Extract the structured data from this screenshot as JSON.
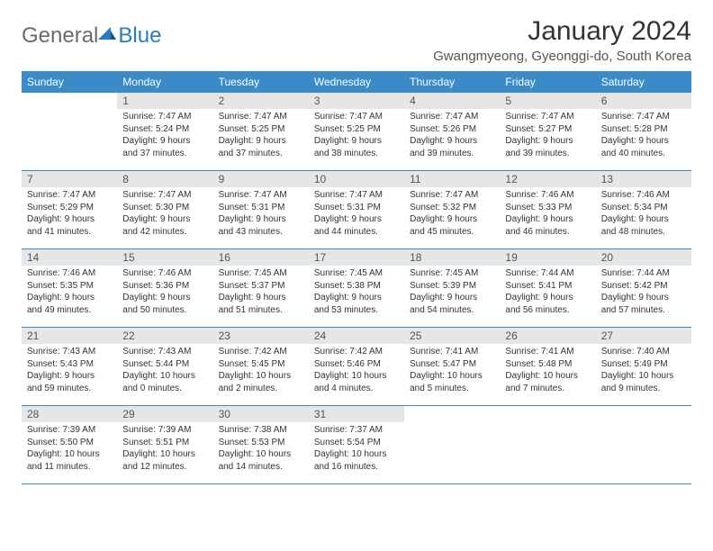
{
  "logo": {
    "general": "General",
    "blue": "Blue"
  },
  "title": "January 2024",
  "location": "Gwangmyeong, Gyeonggi-do, South Korea",
  "colors": {
    "header_bg": "#3b8bc9",
    "header_fg": "#ffffff",
    "daynum_bg": "#e6e6e6",
    "body_text": "#333333",
    "logo_gray": "#6b6b6b",
    "logo_blue": "#2b7bbf"
  },
  "day_headers": [
    "Sunday",
    "Monday",
    "Tuesday",
    "Wednesday",
    "Thursday",
    "Friday",
    "Saturday"
  ],
  "weeks": [
    [
      {
        "num": "",
        "lines": []
      },
      {
        "num": "1",
        "lines": [
          "Sunrise: 7:47 AM",
          "Sunset: 5:24 PM",
          "Daylight: 9 hours and 37 minutes."
        ]
      },
      {
        "num": "2",
        "lines": [
          "Sunrise: 7:47 AM",
          "Sunset: 5:25 PM",
          "Daylight: 9 hours and 37 minutes."
        ]
      },
      {
        "num": "3",
        "lines": [
          "Sunrise: 7:47 AM",
          "Sunset: 5:25 PM",
          "Daylight: 9 hours and 38 minutes."
        ]
      },
      {
        "num": "4",
        "lines": [
          "Sunrise: 7:47 AM",
          "Sunset: 5:26 PM",
          "Daylight: 9 hours and 39 minutes."
        ]
      },
      {
        "num": "5",
        "lines": [
          "Sunrise: 7:47 AM",
          "Sunset: 5:27 PM",
          "Daylight: 9 hours and 39 minutes."
        ]
      },
      {
        "num": "6",
        "lines": [
          "Sunrise: 7:47 AM",
          "Sunset: 5:28 PM",
          "Daylight: 9 hours and 40 minutes."
        ]
      }
    ],
    [
      {
        "num": "7",
        "lines": [
          "Sunrise: 7:47 AM",
          "Sunset: 5:29 PM",
          "Daylight: 9 hours and 41 minutes."
        ]
      },
      {
        "num": "8",
        "lines": [
          "Sunrise: 7:47 AM",
          "Sunset: 5:30 PM",
          "Daylight: 9 hours and 42 minutes."
        ]
      },
      {
        "num": "9",
        "lines": [
          "Sunrise: 7:47 AM",
          "Sunset: 5:31 PM",
          "Daylight: 9 hours and 43 minutes."
        ]
      },
      {
        "num": "10",
        "lines": [
          "Sunrise: 7:47 AM",
          "Sunset: 5:31 PM",
          "Daylight: 9 hours and 44 minutes."
        ]
      },
      {
        "num": "11",
        "lines": [
          "Sunrise: 7:47 AM",
          "Sunset: 5:32 PM",
          "Daylight: 9 hours and 45 minutes."
        ]
      },
      {
        "num": "12",
        "lines": [
          "Sunrise: 7:46 AM",
          "Sunset: 5:33 PM",
          "Daylight: 9 hours and 46 minutes."
        ]
      },
      {
        "num": "13",
        "lines": [
          "Sunrise: 7:46 AM",
          "Sunset: 5:34 PM",
          "Daylight: 9 hours and 48 minutes."
        ]
      }
    ],
    [
      {
        "num": "14",
        "lines": [
          "Sunrise: 7:46 AM",
          "Sunset: 5:35 PM",
          "Daylight: 9 hours and 49 minutes."
        ]
      },
      {
        "num": "15",
        "lines": [
          "Sunrise: 7:46 AM",
          "Sunset: 5:36 PM",
          "Daylight: 9 hours and 50 minutes."
        ]
      },
      {
        "num": "16",
        "lines": [
          "Sunrise: 7:45 AM",
          "Sunset: 5:37 PM",
          "Daylight: 9 hours and 51 minutes."
        ]
      },
      {
        "num": "17",
        "lines": [
          "Sunrise: 7:45 AM",
          "Sunset: 5:38 PM",
          "Daylight: 9 hours and 53 minutes."
        ]
      },
      {
        "num": "18",
        "lines": [
          "Sunrise: 7:45 AM",
          "Sunset: 5:39 PM",
          "Daylight: 9 hours and 54 minutes."
        ]
      },
      {
        "num": "19",
        "lines": [
          "Sunrise: 7:44 AM",
          "Sunset: 5:41 PM",
          "Daylight: 9 hours and 56 minutes."
        ]
      },
      {
        "num": "20",
        "lines": [
          "Sunrise: 7:44 AM",
          "Sunset: 5:42 PM",
          "Daylight: 9 hours and 57 minutes."
        ]
      }
    ],
    [
      {
        "num": "21",
        "lines": [
          "Sunrise: 7:43 AM",
          "Sunset: 5:43 PM",
          "Daylight: 9 hours and 59 minutes."
        ]
      },
      {
        "num": "22",
        "lines": [
          "Sunrise: 7:43 AM",
          "Sunset: 5:44 PM",
          "Daylight: 10 hours and 0 minutes."
        ]
      },
      {
        "num": "23",
        "lines": [
          "Sunrise: 7:42 AM",
          "Sunset: 5:45 PM",
          "Daylight: 10 hours and 2 minutes."
        ]
      },
      {
        "num": "24",
        "lines": [
          "Sunrise: 7:42 AM",
          "Sunset: 5:46 PM",
          "Daylight: 10 hours and 4 minutes."
        ]
      },
      {
        "num": "25",
        "lines": [
          "Sunrise: 7:41 AM",
          "Sunset: 5:47 PM",
          "Daylight: 10 hours and 5 minutes."
        ]
      },
      {
        "num": "26",
        "lines": [
          "Sunrise: 7:41 AM",
          "Sunset: 5:48 PM",
          "Daylight: 10 hours and 7 minutes."
        ]
      },
      {
        "num": "27",
        "lines": [
          "Sunrise: 7:40 AM",
          "Sunset: 5:49 PM",
          "Daylight: 10 hours and 9 minutes."
        ]
      }
    ],
    [
      {
        "num": "28",
        "lines": [
          "Sunrise: 7:39 AM",
          "Sunset: 5:50 PM",
          "Daylight: 10 hours and 11 minutes."
        ]
      },
      {
        "num": "29",
        "lines": [
          "Sunrise: 7:39 AM",
          "Sunset: 5:51 PM",
          "Daylight: 10 hours and 12 minutes."
        ]
      },
      {
        "num": "30",
        "lines": [
          "Sunrise: 7:38 AM",
          "Sunset: 5:53 PM",
          "Daylight: 10 hours and 14 minutes."
        ]
      },
      {
        "num": "31",
        "lines": [
          "Sunrise: 7:37 AM",
          "Sunset: 5:54 PM",
          "Daylight: 10 hours and 16 minutes."
        ]
      },
      {
        "num": "",
        "lines": []
      },
      {
        "num": "",
        "lines": []
      },
      {
        "num": "",
        "lines": []
      }
    ]
  ]
}
